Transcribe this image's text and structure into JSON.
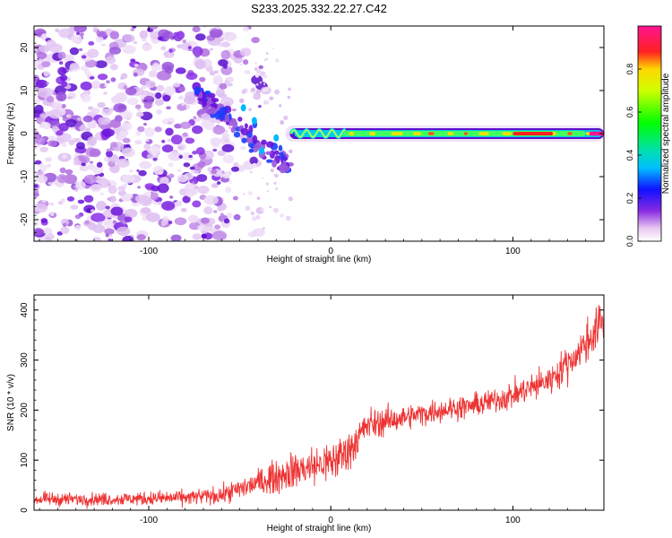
{
  "title": "S233.2025.332.22.27.C42",
  "colors": {
    "snr_line": "#ee3333",
    "frame": "#000000"
  },
  "chart_data": [
    {
      "type": "heatmap",
      "xlabel": "Height of straight line (km)",
      "ylabel": "Frequency (Hz)",
      "xlim": [
        -163,
        150
      ],
      "ylim": [
        -25,
        25
      ],
      "xticks": [
        -100,
        0,
        100
      ],
      "yticks": [
        -20,
        -10,
        0,
        10,
        20
      ],
      "colorbar": {
        "label": "Normalized spectral amplitude",
        "range": [
          0,
          1
        ],
        "ticks": [
          0.0,
          0.2,
          0.4,
          0.6,
          0.8
        ],
        "tick_labels": [
          "0.0",
          "0.2",
          "0.4",
          "0.6",
          "0.8"
        ],
        "colormap": "rainbow (white-purple-blue-cyan-green-yellow-red-magenta)"
      },
      "features": {
        "noise_region_km": [
          -163,
          -55
        ],
        "chirp_region_km": [
          -75,
          -22
        ],
        "signal_start_km": -25,
        "signal_end_km": 150,
        "signal_center_hz": 0
      }
    },
    {
      "type": "line",
      "xlabel": "Height of straight line (km)",
      "ylabel": "SNR (10 * v/v)",
      "xlim": [
        -163,
        150
      ],
      "ylim": [
        0,
        430
      ],
      "xticks": [
        -100,
        0,
        100
      ],
      "yticks": [
        0,
        100,
        200,
        300,
        400
      ],
      "series": [
        {
          "name": "SNR",
          "trend_x": [
            -163,
            -120,
            -80,
            -60,
            -40,
            -20,
            0,
            10,
            20,
            40,
            60,
            80,
            100,
            120,
            135,
            150
          ],
          "trend_y": [
            22,
            22,
            25,
            30,
            55,
            80,
            95,
            120,
            170,
            185,
            200,
            210,
            230,
            260,
            310,
            380
          ],
          "noise_amplitude": [
            12,
            12,
            14,
            16,
            25,
            35,
            40,
            40,
            30,
            22,
            22,
            22,
            25,
            28,
            35,
            45
          ]
        }
      ]
    }
  ]
}
